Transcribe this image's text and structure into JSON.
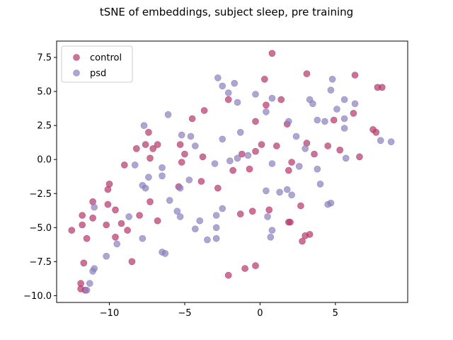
{
  "chart_data": {
    "type": "scatter",
    "title": "tSNE of embeddings, subject sleep, pre training",
    "xlabel": "",
    "ylabel": "",
    "xlim": [
      -13.5,
      9.8
    ],
    "ylim": [
      -10.5,
      8.7
    ],
    "xticks": [
      -10,
      -5,
      0,
      5
    ],
    "xtick_labels": [
      "−10",
      "−5",
      "0",
      "5"
    ],
    "yticks": [
      -10.0,
      -7.5,
      -5.0,
      -2.5,
      0.0,
      2.5,
      5.0,
      7.5
    ],
    "ytick_labels": [
      "−10.0",
      "−7.5",
      "−5.0",
      "−2.5",
      "0.0",
      "2.5",
      "5.0",
      "7.5"
    ],
    "grid": false,
    "legend_position": "top-left",
    "series": [
      {
        "name": "control",
        "color": "#b5376b",
        "points": [
          [
            0.8,
            7.8
          ],
          [
            3.1,
            6.3
          ],
          [
            6.3,
            6.2
          ],
          [
            0.3,
            5.9
          ],
          [
            7.8,
            5.3
          ],
          [
            8.1,
            5.3
          ],
          [
            1.4,
            4.4
          ],
          [
            -2.1,
            4.4
          ],
          [
            0.4,
            4.0
          ],
          [
            -3.7,
            3.6
          ],
          [
            -4.5,
            3.0
          ],
          [
            4.9,
            2.9
          ],
          [
            6.2,
            3.4
          ],
          [
            -0.3,
            2.8
          ],
          [
            7.5,
            2.2
          ],
          [
            7.7,
            2.0
          ],
          [
            -7.4,
            2.0
          ],
          [
            1.8,
            2.6
          ],
          [
            3.1,
            1.2
          ],
          [
            -5.3,
            1.1
          ],
          [
            -7.6,
            1.1
          ],
          [
            -6.8,
            1.1
          ],
          [
            0.1,
            1.1
          ],
          [
            1.1,
            1.0
          ],
          [
            -8.2,
            0.8
          ],
          [
            -7.1,
            0.8
          ],
          [
            -5.0,
            0.4
          ],
          [
            -1.2,
            0.4
          ],
          [
            -0.3,
            0.6
          ],
          [
            -3.8,
            0.2
          ],
          [
            4.5,
            1.0
          ],
          [
            5.3,
            0.7
          ],
          [
            6.6,
            0.2
          ],
          [
            3.6,
            0.4
          ],
          [
            -7.3,
            0.1
          ],
          [
            -5.2,
            -0.2
          ],
          [
            2.1,
            -0.2
          ],
          [
            -9.0,
            -0.4
          ],
          [
            -0.7,
            -0.7
          ],
          [
            -1.8,
            -0.8
          ],
          [
            1.9,
            -0.8
          ],
          [
            -10.0,
            -1.8
          ],
          [
            -3.9,
            -1.6
          ],
          [
            -10.1,
            -2.2
          ],
          [
            -5.4,
            -2.0
          ],
          [
            -2.8,
            -2.1
          ],
          [
            -11.1,
            -3.1
          ],
          [
            -10.1,
            -3.3
          ],
          [
            -7.3,
            -3.1
          ],
          [
            -9.6,
            -3.7
          ],
          [
            2.7,
            -3.4
          ],
          [
            -11.8,
            -4.1
          ],
          [
            -8.0,
            -4.1
          ],
          [
            -11.1,
            -4.3
          ],
          [
            -6.8,
            -4.5
          ],
          [
            -9.2,
            -4.7
          ],
          [
            -12.5,
            -5.2
          ],
          [
            -11.8,
            -4.8
          ],
          [
            -10.2,
            -4.8
          ],
          [
            -8.8,
            -5.2
          ],
          [
            -1.3,
            -4.0
          ],
          [
            -0.5,
            -3.8
          ],
          [
            0.6,
            -3.7
          ],
          [
            1.9,
            -4.6
          ],
          [
            2.0,
            -4.6
          ],
          [
            -11.5,
            -5.8
          ],
          [
            -9.6,
            -5.7
          ],
          [
            3.0,
            -5.6
          ],
          [
            3.3,
            -5.5
          ],
          [
            2.8,
            -6.0
          ],
          [
            -8.5,
            -7.5
          ],
          [
            -11.7,
            -7.6
          ],
          [
            -2.1,
            -8.5
          ],
          [
            -1.0,
            -8.0
          ],
          [
            -0.3,
            -7.8
          ],
          [
            -11.9,
            -9.1
          ],
          [
            -11.9,
            -9.5
          ],
          [
            -11.6,
            -9.6
          ]
        ]
      },
      {
        "name": "psd",
        "color": "#8c7fbe",
        "points": [
          [
            -2.8,
            6.0
          ],
          [
            -2.5,
            5.4
          ],
          [
            -1.7,
            5.6
          ],
          [
            4.8,
            5.9
          ],
          [
            4.7,
            5.1
          ],
          [
            -2.1,
            4.9
          ],
          [
            -0.3,
            4.8
          ],
          [
            0.8,
            4.5
          ],
          [
            -1.5,
            4.2
          ],
          [
            3.3,
            4.4
          ],
          [
            3.5,
            4.1
          ],
          [
            5.6,
            4.4
          ],
          [
            6.3,
            4.1
          ],
          [
            5.1,
            3.7
          ],
          [
            -6.1,
            3.3
          ],
          [
            0.4,
            3.5
          ],
          [
            3.8,
            2.9
          ],
          [
            4.3,
            2.8
          ],
          [
            5.6,
            3.0
          ],
          [
            1.9,
            2.8
          ],
          [
            -7.7,
            2.5
          ],
          [
            5.6,
            2.3
          ],
          [
            -1.3,
            2.0
          ],
          [
            -5.2,
            1.8
          ],
          [
            -4.6,
            1.7
          ],
          [
            2.4,
            1.7
          ],
          [
            -2.5,
            1.5
          ],
          [
            8.0,
            1.4
          ],
          [
            8.7,
            1.3
          ],
          [
            -4.3,
            1.0
          ],
          [
            3.0,
            0.8
          ],
          [
            -0.8,
            0.3
          ],
          [
            -1.5,
            0.1
          ],
          [
            5.7,
            0.1
          ],
          [
            -2.0,
            -0.1
          ],
          [
            0.8,
            -0.3
          ],
          [
            -3.0,
            -0.3
          ],
          [
            -8.3,
            -0.4
          ],
          [
            2.6,
            -0.5
          ],
          [
            -6.5,
            -0.6
          ],
          [
            3.8,
            -0.7
          ],
          [
            -7.4,
            -1.3
          ],
          [
            -6.5,
            -1.2
          ],
          [
            -4.7,
            -1.5
          ],
          [
            4.0,
            -1.8
          ],
          [
            -7.8,
            -1.9
          ],
          [
            -7.6,
            -2.1
          ],
          [
            -5.3,
            -2.1
          ],
          [
            1.8,
            -2.2
          ],
          [
            0.4,
            -2.3
          ],
          [
            1.3,
            -2.4
          ],
          [
            2.1,
            -2.6
          ],
          [
            -6.0,
            -3.0
          ],
          [
            -2.5,
            -3.6
          ],
          [
            4.7,
            -3.2
          ],
          [
            4.5,
            -3.3
          ],
          [
            -8.7,
            -4.2
          ],
          [
            -5.5,
            -3.8
          ],
          [
            -5.3,
            -4.2
          ],
          [
            -2.9,
            -4.1
          ],
          [
            -4.0,
            -4.5
          ],
          [
            0.5,
            -4.2
          ],
          [
            -11.0,
            -3.5
          ],
          [
            -4.3,
            -5.1
          ],
          [
            -2.9,
            -5.0
          ],
          [
            0.8,
            -5.2
          ],
          [
            -3.5,
            -5.9
          ],
          [
            -2.9,
            -5.8
          ],
          [
            -7.8,
            -5.8
          ],
          [
            0.7,
            -5.7
          ],
          [
            -9.5,
            -6.2
          ],
          [
            -6.5,
            -6.8
          ],
          [
            -6.3,
            -6.9
          ],
          [
            -10.2,
            -7.1
          ],
          [
            -11.0,
            -8.0
          ],
          [
            -11.1,
            -8.2
          ],
          [
            -11.3,
            -9.1
          ],
          [
            -11.5,
            -9.6
          ]
        ]
      }
    ]
  }
}
